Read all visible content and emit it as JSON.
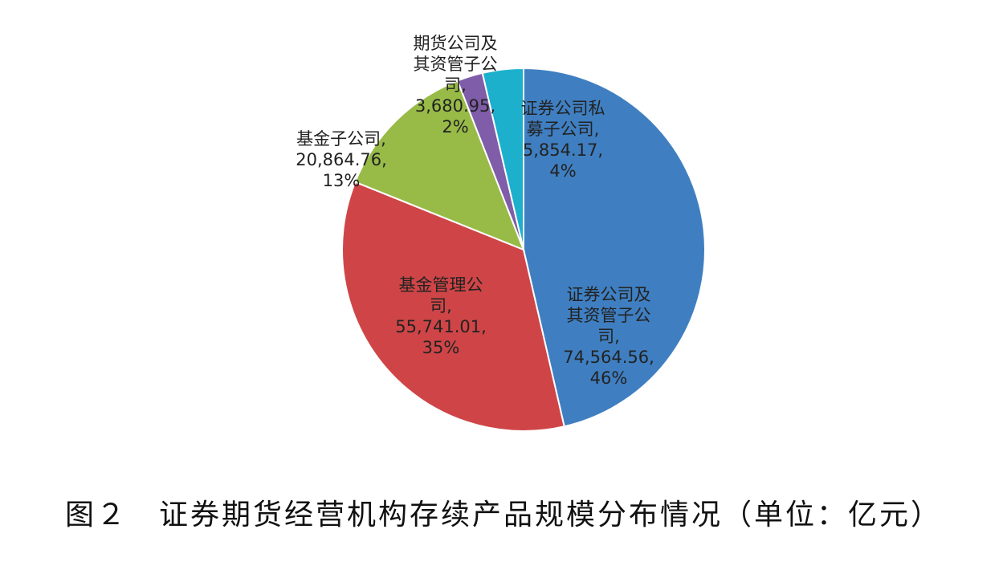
{
  "chart_data": {
    "type": "pie",
    "title": "",
    "slices": [
      {
        "name": "证券公司及其资管子公司",
        "label_lines": [
          "证券公司及",
          "其资管子公",
          "司,",
          "74,564.56,",
          "46%"
        ],
        "value": 74564.56,
        "percent": "46%",
        "color": "#3f7fc1"
      },
      {
        "name": "基金管理公司",
        "label_lines": [
          "基金管理公",
          "司,",
          "55,741.01,",
          "35%"
        ],
        "value": 55741.01,
        "percent": "35%",
        "color": "#cf4547"
      },
      {
        "name": "基金子公司",
        "label_lines": [
          "基金子公司,",
          "20,864.76,",
          "13%"
        ],
        "value": 20864.76,
        "percent": "13%",
        "color": "#98bb48"
      },
      {
        "name": "期货公司及其资管子公司",
        "label_lines": [
          "期货公司及",
          "其资管子公",
          "司,",
          "3,680.95,",
          "2%"
        ],
        "value": 3680.95,
        "percent": "2%",
        "color": "#7f5da8"
      },
      {
        "name": "证券公司私募子公司",
        "label_lines": [
          "证券公司私",
          "募子公司,",
          "5,854.17,",
          "4%"
        ],
        "value": 5854.17,
        "percent": "4%",
        "color": "#1cb0cd"
      }
    ],
    "legend": "none"
  },
  "caption": "图２　证券期货经营机构存续产品规模分布情况（单位：亿元）"
}
